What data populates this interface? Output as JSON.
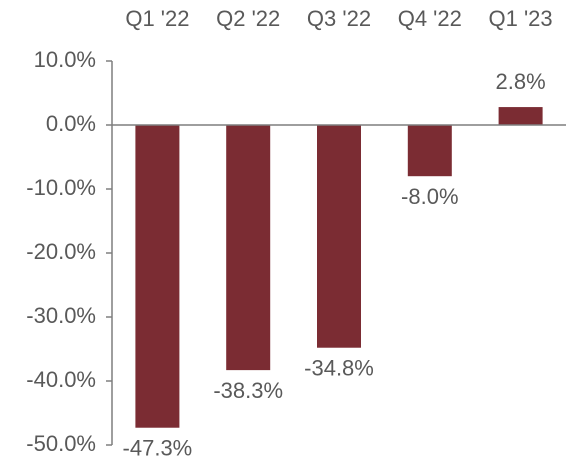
{
  "chart_data": {
    "type": "bar",
    "categories": [
      "Q1 '22",
      "Q2 '22",
      "Q3 '22",
      "Q4 '22",
      "Q1 '23"
    ],
    "values": [
      -47.3,
      -38.3,
      -34.8,
      -8.0,
      2.8
    ],
    "value_labels": [
      "-47.3%",
      "-38.3%",
      "-34.8%",
      "-8.0%",
      "2.8%"
    ],
    "color": "#7b2c33",
    "ylim": [
      -50,
      10
    ],
    "yticks": [
      {
        "value": -50,
        "label": "-50.0%"
      },
      {
        "value": -40,
        "label": "-40.0%"
      },
      {
        "value": -30,
        "label": "-30.0%"
      },
      {
        "value": -20,
        "label": "-20.0%"
      },
      {
        "value": -10,
        "label": "-10.0%"
      },
      {
        "value": 0,
        "label": "0.0%"
      },
      {
        "value": 10,
        "label": "10.0%"
      }
    ],
    "grid": false
  }
}
